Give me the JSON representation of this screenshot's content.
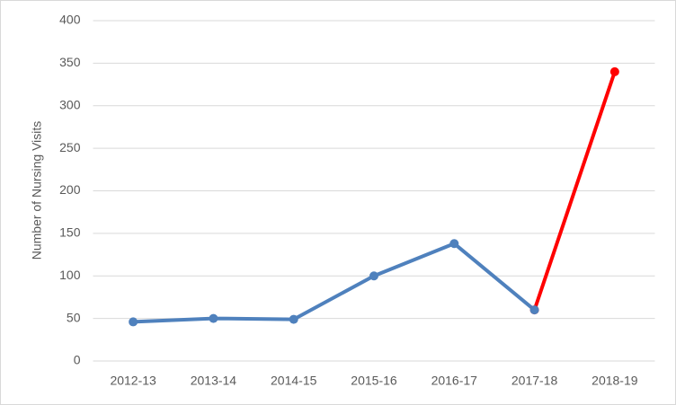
{
  "chart_data": {
    "type": "line",
    "y_label": "Number of Nursing Visits",
    "categories": [
      "2012-13",
      "2013-14",
      "2014-15",
      "2015-16",
      "2016-17",
      "2017-18",
      "2018-19"
    ],
    "series": [
      {
        "color": "#4f81bd",
        "values": [
          46,
          50,
          49,
          100,
          138,
          60,
          null
        ]
      },
      {
        "color": "#ff0000",
        "values": [
          null,
          null,
          null,
          null,
          null,
          60,
          340
        ]
      }
    ],
    "ylim": [
      0,
      400
    ],
    "yticks": [
      0,
      50,
      100,
      150,
      200,
      250,
      300,
      350,
      400
    ],
    "grid": true
  }
}
